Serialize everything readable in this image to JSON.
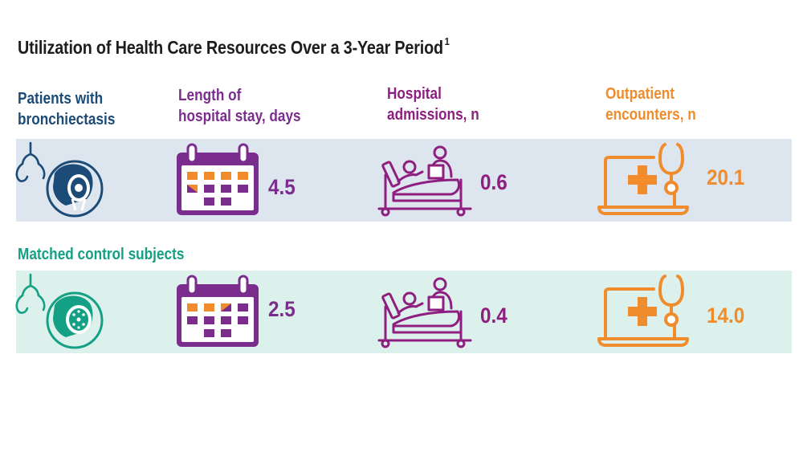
{
  "chart_data": {
    "type": "table",
    "title": "Utilization of Health Care Resources Over a 3-Year Period",
    "title_superscript": "1",
    "columns": [
      "Length of\nhospital stay, days",
      "Hospital\nadmissions, n",
      "Outpatient\nencounters, n"
    ],
    "groups": [
      {
        "name": "Patients with bronchiectasis",
        "values": [
          "4.5",
          "0.6",
          "20.1"
        ]
      },
      {
        "name": "Matched control subjects",
        "values": [
          "2.5",
          "0.4",
          "14.0"
        ]
      }
    ],
    "colors": {
      "length_of_stay": "#7b2d8e",
      "admissions": "#8e1e7f",
      "outpatient": "#f08c2b",
      "bronchiectasis": "#1b4b76",
      "control": "#14a085"
    },
    "icons": [
      "lungs-bronchiectasis-icon",
      "calendar-icon",
      "hospital-bed-icon",
      "laptop-stethoscope-icon",
      "lungs-normal-icon"
    ]
  },
  "headers": {
    "los_line1": "Length of",
    "los_line2": "hospital stay, days",
    "adm_line1": "Hospital",
    "adm_line2": "admissions, n",
    "out_line1": "Outpatient",
    "out_line2": "encounters, n"
  },
  "groups": {
    "bx_line1": "Patients with",
    "bx_line2": "bronchiectasis",
    "ctl": "Matched control subjects"
  }
}
